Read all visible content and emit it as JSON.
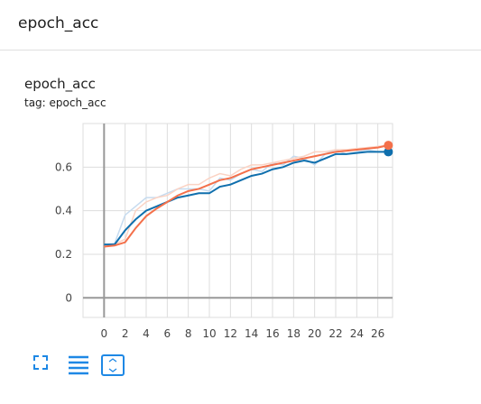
{
  "header": {
    "title": "epoch_acc"
  },
  "chart_data": {
    "type": "line",
    "title": "epoch_acc",
    "subtitle": "tag: epoch_acc",
    "x": [
      0,
      1,
      2,
      3,
      4,
      5,
      6,
      7,
      8,
      9,
      10,
      11,
      12,
      13,
      14,
      15,
      16,
      17,
      18,
      19,
      20,
      21,
      22,
      23,
      24,
      25,
      26,
      27
    ],
    "series": [
      {
        "color": "#c6dbef",
        "values": [
          0.245,
          0.25,
          0.38,
          0.42,
          0.46,
          0.46,
          0.48,
          0.5,
          0.5,
          0.5,
          0.49,
          0.55,
          0.54,
          0.57,
          0.59,
          0.58,
          0.62,
          0.61,
          0.65,
          0.64,
          0.61,
          0.66,
          0.68,
          0.66,
          0.67,
          0.68,
          0.67,
          0.67
        ]
      },
      {
        "color": "#fbd3c4",
        "values": [
          0.235,
          0.245,
          0.27,
          0.4,
          0.44,
          0.46,
          0.47,
          0.5,
          0.52,
          0.52,
          0.55,
          0.57,
          0.56,
          0.59,
          0.61,
          0.61,
          0.62,
          0.63,
          0.64,
          0.65,
          0.67,
          0.67,
          0.68,
          0.68,
          0.685,
          0.69,
          0.695,
          0.7
        ]
      },
      {
        "color": "#0f6fad",
        "values": [
          0.245,
          0.245,
          0.31,
          0.36,
          0.4,
          0.42,
          0.44,
          0.46,
          0.47,
          0.48,
          0.48,
          0.51,
          0.52,
          0.54,
          0.56,
          0.57,
          0.59,
          0.6,
          0.62,
          0.63,
          0.62,
          0.64,
          0.66,
          0.66,
          0.665,
          0.67,
          0.67,
          0.67
        ]
      },
      {
        "color": "#f4704a",
        "values": [
          0.235,
          0.24,
          0.255,
          0.32,
          0.375,
          0.41,
          0.44,
          0.47,
          0.49,
          0.5,
          0.52,
          0.54,
          0.55,
          0.57,
          0.59,
          0.6,
          0.61,
          0.62,
          0.63,
          0.64,
          0.65,
          0.66,
          0.67,
          0.675,
          0.68,
          0.685,
          0.69,
          0.7
        ]
      }
    ],
    "xlim": [
      -2,
      27.4
    ],
    "xticks": [
      0,
      2,
      4,
      6,
      8,
      10,
      12,
      14,
      16,
      18,
      20,
      22,
      24,
      26
    ],
    "ylim": [
      -0.09,
      0.8
    ],
    "yticks": [
      0,
      0.2,
      0.4,
      0.6
    ],
    "grid": true
  }
}
